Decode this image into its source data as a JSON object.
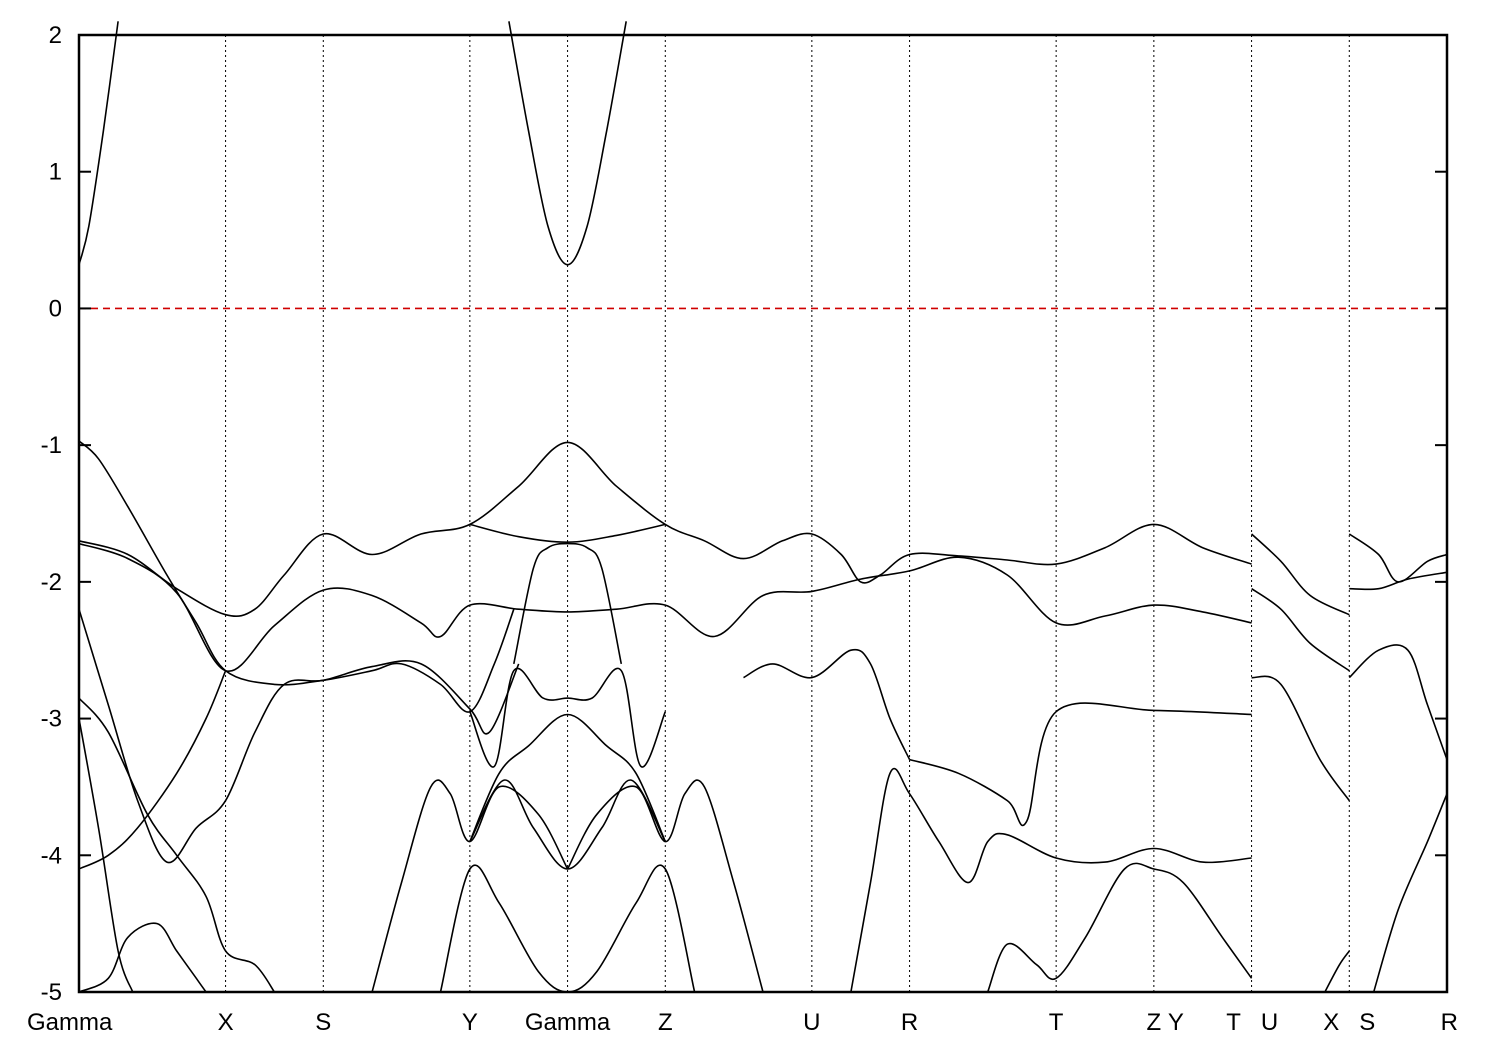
{
  "chart_data": {
    "type": "line",
    "title": "",
    "xlabel": "",
    "ylabel": "",
    "ylim": [
      -5,
      2
    ],
    "yticks": [
      -5,
      -4,
      -3,
      -2,
      -1,
      0,
      1,
      2
    ],
    "ytick_labels": [
      "-5",
      "-4",
      "-3",
      "-2",
      "-1",
      "0",
      "1",
      "2"
    ],
    "xlim": [
      0,
      14
    ],
    "kpoints": [
      {
        "x": 0.0,
        "label": "Gamma"
      },
      {
        "x": 1.5,
        "label": "X"
      },
      {
        "x": 2.5,
        "label": "S"
      },
      {
        "x": 4.0,
        "label": "Y"
      },
      {
        "x": 5.0,
        "label": "Gamma"
      },
      {
        "x": 6.0,
        "label": "Z"
      },
      {
        "x": 7.5,
        "label": "U"
      },
      {
        "x": 8.5,
        "label": "R"
      },
      {
        "x": 10.0,
        "label": "T"
      },
      {
        "x": 11.0,
        "label": "Z"
      },
      {
        "x": 11.0,
        "label": "Y",
        "offset": 22
      },
      {
        "x": 12.0,
        "label": "T",
        "offset": -18
      },
      {
        "x": 12.0,
        "label": "U",
        "offset": 18
      },
      {
        "x": 13.0,
        "label": "X",
        "offset": -18
      },
      {
        "x": 13.0,
        "label": "S",
        "offset": 18
      },
      {
        "x": 14.0,
        "label": "R"
      }
    ],
    "vlines": [
      1.5,
      2.5,
      4.0,
      5.0,
      6.0,
      7.5,
      8.5,
      10.0,
      11.0,
      12.0,
      13.0
    ],
    "fermi_level": {
      "y": 0,
      "color": "#d00000"
    },
    "series": [
      {
        "points": [
          [
            0,
            0.32
          ],
          [
            0.1,
            0.6
          ],
          [
            0.25,
            1.3
          ],
          [
            0.4,
            2.1
          ]
        ]
      },
      {
        "points": [
          [
            4.4,
            2.1
          ],
          [
            4.6,
            1.3
          ],
          [
            4.8,
            0.6
          ],
          [
            5.0,
            0.32
          ],
          [
            5.2,
            0.6
          ],
          [
            5.4,
            1.3
          ],
          [
            5.6,
            2.1
          ]
        ]
      },
      {
        "points": [
          [
            0,
            -0.97
          ],
          [
            0.2,
            -1.1
          ],
          [
            0.5,
            -1.45
          ],
          [
            0.9,
            -1.95
          ],
          [
            1.2,
            -2.3
          ],
          [
            1.5,
            -2.65
          ],
          [
            2.0,
            -2.75
          ],
          [
            2.5,
            -2.72
          ],
          [
            3.0,
            -2.65
          ],
          [
            3.3,
            -2.6
          ],
          [
            3.7,
            -2.75
          ],
          [
            4.0,
            -2.95
          ],
          [
            4.25,
            -2.6
          ],
          [
            4.45,
            -2.2
          ]
        ]
      },
      {
        "points": [
          [
            0,
            -1.7
          ],
          [
            0.5,
            -1.8
          ],
          [
            1.0,
            -2.05
          ],
          [
            1.5,
            -2.24
          ],
          [
            1.8,
            -2.2
          ],
          [
            2.1,
            -1.95
          ],
          [
            2.5,
            -1.65
          ],
          [
            3.0,
            -1.8
          ],
          [
            3.5,
            -1.65
          ],
          [
            4.0,
            -1.58
          ],
          [
            4.5,
            -1.3
          ],
          [
            5.0,
            -0.98
          ],
          [
            5.5,
            -1.3
          ],
          [
            6.0,
            -1.58
          ],
          [
            6.4,
            -1.7
          ],
          [
            6.8,
            -1.83
          ],
          [
            7.2,
            -1.7
          ],
          [
            7.5,
            -1.65
          ],
          [
            7.8,
            -1.8
          ],
          [
            8.0,
            -2.0
          ],
          [
            8.2,
            -1.95
          ],
          [
            8.5,
            -1.8
          ],
          [
            9.0,
            -1.81
          ],
          [
            9.5,
            -1.84
          ],
          [
            10.0,
            -1.87
          ],
          [
            10.5,
            -1.75
          ],
          [
            11.0,
            -1.58
          ],
          [
            11.5,
            -1.75
          ],
          [
            12.0,
            -1.87
          ]
        ]
      },
      {
        "points": [
          [
            0,
            -1.72
          ],
          [
            0.5,
            -1.83
          ],
          [
            1.0,
            -2.08
          ],
          [
            1.5,
            -2.65
          ],
          [
            2.0,
            -2.32
          ],
          [
            2.5,
            -2.06
          ],
          [
            3.0,
            -2.1
          ],
          [
            3.5,
            -2.3
          ],
          [
            3.7,
            -2.4
          ],
          [
            4.0,
            -2.17
          ],
          [
            4.5,
            -2.2
          ],
          [
            5.0,
            -2.22
          ],
          [
            5.5,
            -2.2
          ],
          [
            6.0,
            -2.17
          ],
          [
            6.5,
            -2.4
          ],
          [
            7.0,
            -2.1
          ],
          [
            7.5,
            -2.07
          ],
          [
            8.0,
            -1.98
          ],
          [
            8.5,
            -1.92
          ],
          [
            9.0,
            -1.82
          ],
          [
            9.5,
            -1.95
          ],
          [
            10.0,
            -2.3
          ],
          [
            10.5,
            -2.25
          ],
          [
            11.0,
            -2.17
          ],
          [
            11.5,
            -2.22
          ],
          [
            12.0,
            -2.3
          ]
        ]
      },
      {
        "points": [
          [
            4.0,
            -1.58
          ],
          [
            4.5,
            -1.67
          ],
          [
            5.0,
            -1.71
          ],
          [
            5.5,
            -1.66
          ],
          [
            6.0,
            -1.58
          ]
        ]
      },
      {
        "points": [
          [
            0,
            -2.2
          ],
          [
            0.3,
            -2.9
          ],
          [
            0.6,
            -3.6
          ],
          [
            0.9,
            -4.05
          ],
          [
            1.2,
            -3.8
          ],
          [
            1.5,
            -3.6
          ],
          [
            1.8,
            -3.1
          ],
          [
            2.1,
            -2.75
          ],
          [
            2.5,
            -2.72
          ],
          [
            3.0,
            -2.62
          ],
          [
            3.5,
            -2.6
          ],
          [
            4.0,
            -2.93
          ],
          [
            4.2,
            -3.1
          ],
          [
            4.5,
            -2.6
          ]
        ]
      },
      {
        "points": [
          [
            0,
            -2.85
          ],
          [
            0.3,
            -3.1
          ],
          [
            0.7,
            -3.7
          ],
          [
            1.0,
            -4.0
          ],
          [
            1.3,
            -4.3
          ],
          [
            1.5,
            -4.7
          ],
          [
            1.8,
            -4.8
          ],
          [
            2.0,
            -5.0
          ]
        ]
      },
      {
        "points": [
          [
            0,
            -4.1
          ],
          [
            0.3,
            -4.0
          ],
          [
            0.6,
            -3.8
          ],
          [
            1.0,
            -3.4
          ],
          [
            1.3,
            -3.0
          ],
          [
            1.5,
            -2.65
          ]
        ]
      },
      {
        "points": [
          [
            0,
            -3.0
          ],
          [
            0.2,
            -3.8
          ],
          [
            0.4,
            -4.7
          ],
          [
            0.55,
            -5.0
          ]
        ]
      },
      {
        "points": [
          [
            0,
            -5.0
          ],
          [
            0.3,
            -4.9
          ],
          [
            0.5,
            -4.6
          ],
          [
            0.8,
            -4.5
          ],
          [
            1.0,
            -4.7
          ],
          [
            1.2,
            -4.9
          ],
          [
            1.3,
            -5.0
          ]
        ]
      },
      {
        "points": [
          [
            4.45,
            -2.6
          ],
          [
            4.65,
            -1.9
          ],
          [
            4.8,
            -1.75
          ],
          [
            5.0,
            -1.72
          ],
          [
            5.2,
            -1.75
          ],
          [
            5.35,
            -1.9
          ],
          [
            5.55,
            -2.6
          ]
        ]
      },
      {
        "points": [
          [
            4.0,
            -2.95
          ],
          [
            4.25,
            -3.35
          ],
          [
            4.45,
            -2.65
          ],
          [
            4.75,
            -2.85
          ],
          [
            5.0,
            -2.85
          ],
          [
            5.25,
            -2.85
          ],
          [
            5.55,
            -2.65
          ],
          [
            5.75,
            -3.35
          ],
          [
            6.0,
            -2.95
          ]
        ]
      },
      {
        "points": [
          [
            4.0,
            -3.9
          ],
          [
            4.3,
            -3.4
          ],
          [
            4.6,
            -3.2
          ],
          [
            5.0,
            -2.97
          ],
          [
            5.4,
            -3.2
          ],
          [
            5.7,
            -3.4
          ],
          [
            6.0,
            -3.9
          ]
        ]
      },
      {
        "points": [
          [
            4.0,
            -3.9
          ],
          [
            4.35,
            -3.45
          ],
          [
            4.65,
            -3.8
          ],
          [
            5.0,
            -4.1
          ],
          [
            5.35,
            -3.8
          ],
          [
            5.65,
            -3.45
          ],
          [
            6.0,
            -3.9
          ]
        ]
      },
      {
        "points": [
          [
            3.0,
            -5.0
          ],
          [
            3.3,
            -4.2
          ],
          [
            3.6,
            -3.5
          ],
          [
            3.8,
            -3.55
          ],
          [
            4.0,
            -3.9
          ],
          [
            4.3,
            -3.5
          ],
          [
            4.7,
            -3.7
          ],
          [
            5.0,
            -4.1
          ]
        ]
      },
      {
        "points": [
          [
            5.0,
            -4.1
          ],
          [
            5.3,
            -3.7
          ],
          [
            5.7,
            -3.5
          ],
          [
            6.0,
            -3.9
          ],
          [
            6.2,
            -3.55
          ],
          [
            6.4,
            -3.5
          ],
          [
            6.7,
            -4.2
          ],
          [
            7.0,
            -5.0
          ]
        ]
      },
      {
        "points": [
          [
            3.7,
            -5.0
          ],
          [
            4.0,
            -4.1
          ],
          [
            4.3,
            -4.35
          ],
          [
            4.7,
            -4.85
          ],
          [
            5.0,
            -5.0
          ],
          [
            5.3,
            -4.85
          ],
          [
            5.7,
            -4.35
          ],
          [
            6.0,
            -4.1
          ],
          [
            6.3,
            -5.0
          ]
        ]
      },
      {
        "points": [
          [
            7.9,
            -5.0
          ],
          [
            8.1,
            -4.2
          ],
          [
            8.3,
            -3.4
          ],
          [
            8.5,
            -3.55
          ],
          [
            8.8,
            -3.9
          ],
          [
            9.1,
            -4.2
          ],
          [
            9.3,
            -3.9
          ],
          [
            9.5,
            -3.85
          ],
          [
            10.0,
            -4.02
          ],
          [
            10.5,
            -4.05
          ],
          [
            11.0,
            -3.95
          ],
          [
            11.5,
            -4.05
          ],
          [
            12.0,
            -4.02
          ]
        ]
      },
      {
        "points": [
          [
            8.5,
            -3.3
          ],
          [
            9.0,
            -3.4
          ],
          [
            9.5,
            -3.6
          ],
          [
            9.7,
            -3.75
          ],
          [
            10.0,
            -2.95
          ],
          [
            11.0,
            -2.94
          ],
          [
            12.0,
            -2.97
          ]
        ]
      },
      {
        "points": [
          [
            6.8,
            -2.7
          ],
          [
            7.1,
            -2.6
          ],
          [
            7.5,
            -2.7
          ],
          [
            7.9,
            -2.5
          ],
          [
            8.1,
            -2.6
          ],
          [
            8.3,
            -3.0
          ],
          [
            8.5,
            -3.3
          ]
        ]
      },
      {
        "points": [
          [
            9.3,
            -5.0
          ],
          [
            9.5,
            -4.65
          ],
          [
            9.8,
            -4.8
          ],
          [
            10.0,
            -4.9
          ],
          [
            10.3,
            -4.6
          ],
          [
            10.7,
            -4.1
          ],
          [
            11.0,
            -4.1
          ],
          [
            11.3,
            -4.2
          ],
          [
            11.7,
            -4.6
          ],
          [
            12.0,
            -4.9
          ]
        ]
      },
      {
        "points": [
          [
            12.0,
            -1.65
          ],
          [
            12.3,
            -1.85
          ],
          [
            12.6,
            -2.1
          ],
          [
            13.0,
            -2.24
          ]
        ]
      },
      {
        "points": [
          [
            12.0,
            -2.05
          ],
          [
            12.3,
            -2.2
          ],
          [
            12.6,
            -2.45
          ],
          [
            13.0,
            -2.65
          ]
        ]
      },
      {
        "points": [
          [
            12.0,
            -2.7
          ],
          [
            12.3,
            -2.75
          ],
          [
            12.7,
            -3.3
          ],
          [
            13.0,
            -3.6
          ]
        ]
      },
      {
        "points": [
          [
            12.75,
            -5.0
          ],
          [
            12.9,
            -4.8
          ],
          [
            13.0,
            -4.7
          ]
        ]
      },
      {
        "points": [
          [
            13.0,
            -1.65
          ],
          [
            13.3,
            -1.8
          ],
          [
            13.5,
            -2.0
          ],
          [
            13.8,
            -1.85
          ],
          [
            14.0,
            -1.8
          ]
        ]
      },
      {
        "points": [
          [
            13.0,
            -2.05
          ],
          [
            13.3,
            -2.05
          ],
          [
            13.6,
            -1.98
          ],
          [
            14.0,
            -1.93
          ]
        ]
      },
      {
        "points": [
          [
            13.0,
            -2.7
          ],
          [
            13.3,
            -2.5
          ],
          [
            13.6,
            -2.5
          ],
          [
            13.8,
            -2.9
          ],
          [
            14.0,
            -3.3
          ]
        ]
      },
      {
        "points": [
          [
            13.25,
            -5.0
          ],
          [
            13.5,
            -4.4
          ],
          [
            13.8,
            -3.9
          ],
          [
            14.0,
            -3.55
          ]
        ]
      }
    ]
  }
}
